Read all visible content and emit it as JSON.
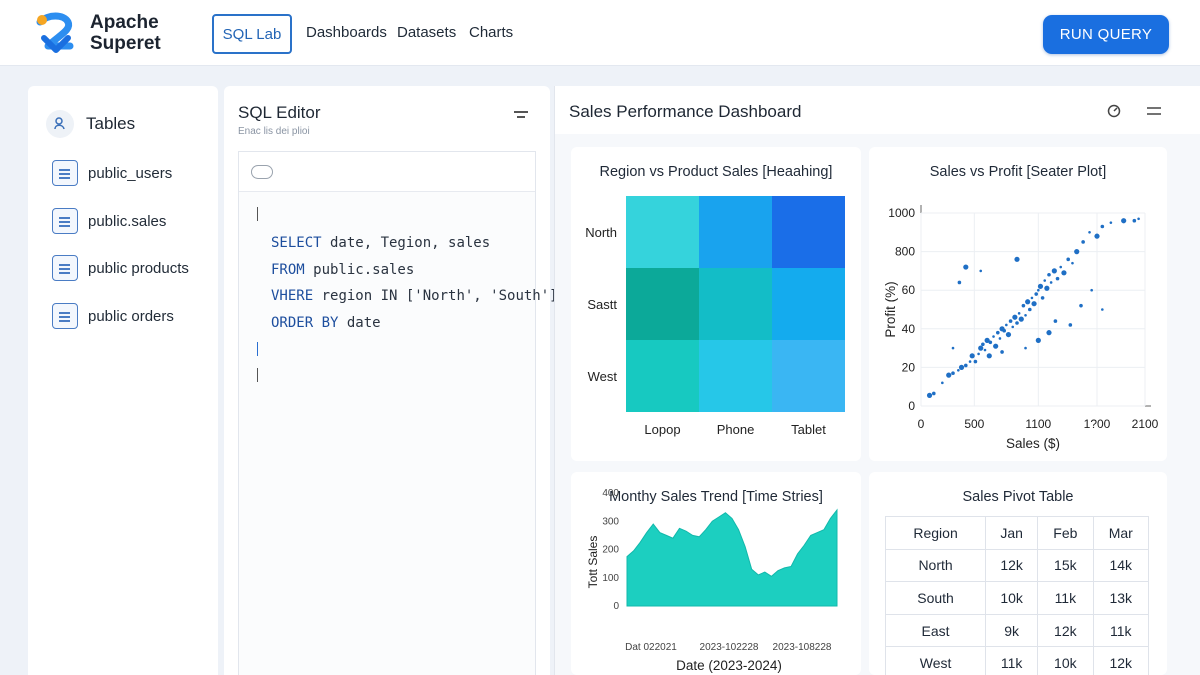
{
  "app": {
    "logo_text": "Apache\nSuperet",
    "nav": {
      "sql_lab": "SQL Lab",
      "dashboards": "Dashboards",
      "datasets": "Datasets",
      "charts": "Charts"
    },
    "run_query_label": "RUN QUERY",
    "accent_color": "#1a6fe0"
  },
  "sidebar": {
    "title": "Tables",
    "items": [
      {
        "label": "public_users",
        "icon": "table-doc-icon"
      },
      {
        "label": "public.sales",
        "icon": "table-doc-icon"
      },
      {
        "label": "public products",
        "icon": "table-doc-icon"
      },
      {
        "label": "public orders",
        "icon": "table-doc-icon"
      }
    ]
  },
  "editor": {
    "title": "SQL Editor",
    "subtitle": "Enac lis dei plioi",
    "code_lines": [
      {
        "kw": "SELECT",
        "rest": " date, Tegion, sales"
      },
      {
        "kw": "FROM",
        "rest": " public.sales"
      },
      {
        "kw": "VHERE",
        "rest": " region IN ['North', 'South']"
      },
      {
        "kw": "ORDER BY",
        "rest": " date"
      }
    ]
  },
  "dashboard": {
    "title": "Sales Performance Dashboard",
    "heatmap": {
      "title": "Region vs Product Sales [Heaahing]",
      "rows": [
        "North",
        "Sastt",
        "West"
      ],
      "cols": [
        "Lopop",
        "Phone",
        "Tablet"
      ],
      "colors": [
        [
          "#35d3dc",
          "#19a3ee",
          "#1a6ee8"
        ],
        [
          "#0ca999",
          "#13bdc7",
          "#14abee"
        ],
        [
          "#17c9c1",
          "#26c7e8",
          "#3ab6f3"
        ]
      ]
    },
    "scatter": {
      "title": "Sales vs Profit [Seater Plot]",
      "xlabel": "Sales ($)",
      "ylabel": "Profit (%)",
      "xticks": [
        "0",
        "500",
        "1100",
        "1?00",
        "2100"
      ],
      "yticks": [
        "0",
        "20",
        "40",
        "60",
        "800",
        "1000"
      ],
      "point_color": "#1f6fc5"
    },
    "trend": {
      "title": "Monthy Sales Trend [Time Stries]",
      "xlabel": "Date (2023-2024)",
      "ylabel": "Tott Sales",
      "yticks": [
        "0",
        "100",
        "200",
        "300",
        "400"
      ],
      "xticks": [
        "Dat 022021",
        "2023-102228",
        "2023-108228"
      ],
      "fill_color": "#1ccfc0"
    },
    "pivot": {
      "title": "Sales Pivot Table",
      "headers": [
        "Region",
        "Jan",
        "Feb",
        "Mar"
      ],
      "rows": [
        [
          "North",
          "12k",
          "15k",
          "14k"
        ],
        [
          "South",
          "10k",
          "11k",
          "13k"
        ],
        [
          "East",
          "9k",
          "12k",
          "11k"
        ],
        [
          "West",
          "11k",
          "10k",
          "12k"
        ]
      ]
    }
  },
  "chart_data": [
    {
      "type": "heatmap",
      "title": "Region vs Product Sales [Heaahing]",
      "rows": [
        "North",
        "Sastt",
        "West"
      ],
      "cols": [
        "Lopop",
        "Phone",
        "Tablet"
      ]
    },
    {
      "type": "scatter",
      "title": "Sales vs Profit [Seater Plot]",
      "xlabel": "Sales ($)",
      "ylabel": "Profit (%)",
      "xlim": [
        0,
        2100
      ],
      "ylim": [
        0,
        1000
      ],
      "points": [
        [
          80,
          55
        ],
        [
          120,
          65
        ],
        [
          200,
          120
        ],
        [
          260,
          160
        ],
        [
          300,
          170
        ],
        [
          350,
          185
        ],
        [
          380,
          200
        ],
        [
          420,
          210
        ],
        [
          460,
          230
        ],
        [
          480,
          260
        ],
        [
          510,
          230
        ],
        [
          540,
          270
        ],
        [
          560,
          300
        ],
        [
          580,
          320
        ],
        [
          600,
          290
        ],
        [
          620,
          340
        ],
        [
          650,
          330
        ],
        [
          680,
          360
        ],
        [
          700,
          310
        ],
        [
          720,
          380
        ],
        [
          740,
          350
        ],
        [
          760,
          400
        ],
        [
          780,
          390
        ],
        [
          800,
          420
        ],
        [
          820,
          370
        ],
        [
          840,
          440
        ],
        [
          860,
          410
        ],
        [
          880,
          460
        ],
        [
          900,
          430
        ],
        [
          920,
          480
        ],
        [
          940,
          450
        ],
        [
          960,
          520
        ],
        [
          980,
          470
        ],
        [
          1000,
          540
        ],
        [
          1020,
          500
        ],
        [
          1040,
          560
        ],
        [
          1060,
          530
        ],
        [
          1080,
          580
        ],
        [
          1100,
          600
        ],
        [
          1120,
          620
        ],
        [
          1140,
          560
        ],
        [
          1160,
          650
        ],
        [
          1180,
          610
        ],
        [
          1200,
          680
        ],
        [
          1220,
          640
        ],
        [
          1250,
          700
        ],
        [
          1280,
          660
        ],
        [
          1310,
          720
        ],
        [
          1340,
          690
        ],
        [
          1380,
          760
        ],
        [
          1420,
          740
        ],
        [
          1460,
          800
        ],
        [
          1520,
          850
        ],
        [
          1580,
          900
        ],
        [
          1650,
          880
        ],
        [
          1700,
          930
        ],
        [
          1780,
          950
        ],
        [
          1900,
          960
        ],
        [
          2000,
          960
        ],
        [
          2040,
          970
        ],
        [
          420,
          720
        ],
        [
          360,
          640
        ],
        [
          560,
          700
        ],
        [
          900,
          760
        ],
        [
          1500,
          520
        ],
        [
          1700,
          500
        ],
        [
          1200,
          380
        ],
        [
          1400,
          420
        ],
        [
          300,
          300
        ],
        [
          640,
          260
        ],
        [
          760,
          280
        ],
        [
          980,
          300
        ],
        [
          1100,
          340
        ],
        [
          1260,
          440
        ],
        [
          1600,
          600
        ]
      ]
    },
    {
      "type": "area",
      "title": "Monthy Sales Trend [Time Stries]",
      "xlabel": "Date (2023-2024)",
      "ylabel": "Tott Sales",
      "ylim": [
        0,
        400
      ],
      "values": [
        175,
        195,
        225,
        260,
        290,
        260,
        250,
        240,
        275,
        265,
        250,
        245,
        270,
        300,
        315,
        330,
        310,
        270,
        210,
        130,
        110,
        120,
        105,
        125,
        135,
        140,
        185,
        215,
        250,
        260,
        270,
        310,
        340
      ]
    },
    {
      "type": "table",
      "title": "Sales Pivot Table",
      "columns": [
        "Region",
        "Jan",
        "Feb",
        "Mar"
      ],
      "rows": [
        [
          "North",
          "12k",
          "15k",
          "14k"
        ],
        [
          "South",
          "10k",
          "11k",
          "13k"
        ],
        [
          "East",
          "9k",
          "12k",
          "11k"
        ],
        [
          "West",
          "11k",
          "10k",
          "12k"
        ]
      ]
    }
  ]
}
